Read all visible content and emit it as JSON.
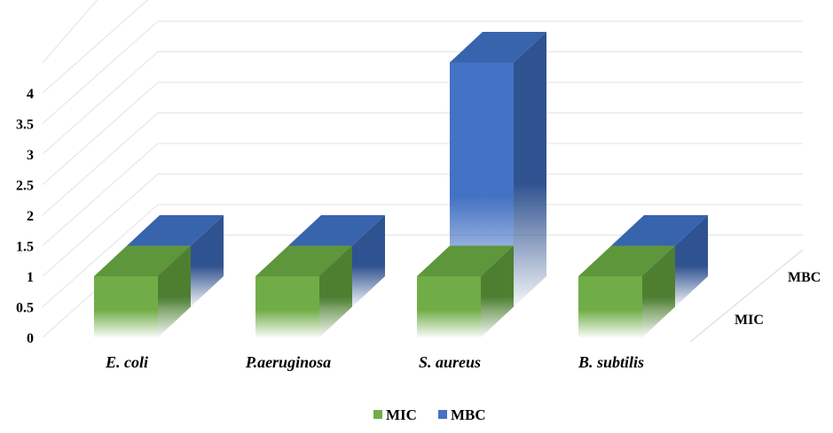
{
  "chart_data": {
    "type": "bar",
    "subtype": "3d-column",
    "title": "",
    "xlabel": "",
    "ylabel": "",
    "categories": [
      "E. coli",
      "P.aeruginosa",
      "S. aureus",
      "B. subtilis"
    ],
    "series": [
      {
        "name": "MIC",
        "values": [
          1,
          1,
          1,
          1
        ]
      },
      {
        "name": "MBC",
        "values": [
          1,
          1,
          4,
          1
        ]
      }
    ],
    "yticks": [
      "0",
      "0.5",
      "1",
      "1.5",
      "2",
      "2.5",
      "3",
      "3.5",
      "4"
    ],
    "ylim": [
      0,
      4
    ],
    "depth_labels": [
      "MIC",
      "MBC"
    ],
    "legend_position": "bottom",
    "grid": true,
    "colors": {
      "MIC": "#70AD47",
      "MBC": "#4472C4",
      "grid": "#E3E3E3"
    }
  }
}
